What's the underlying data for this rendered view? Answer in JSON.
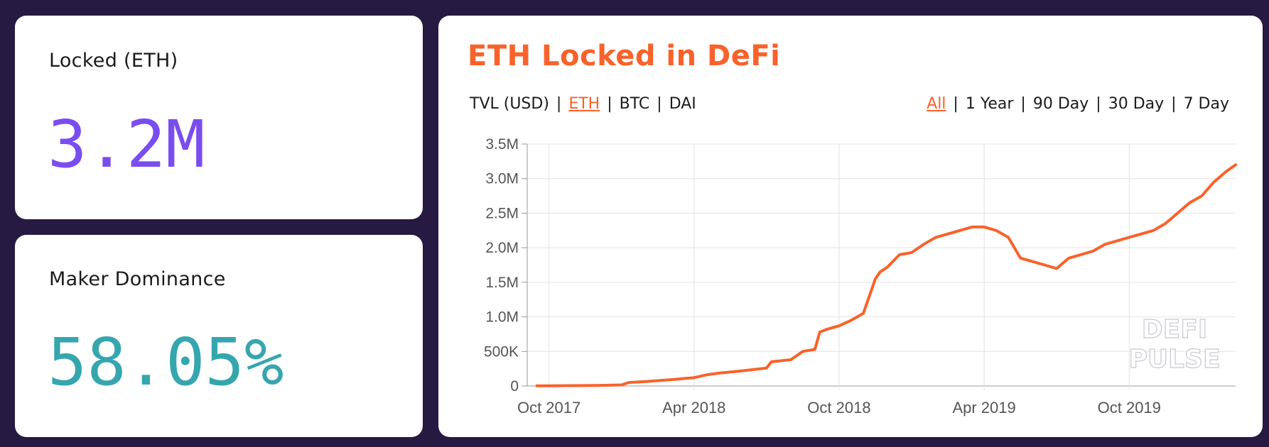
{
  "colors": {
    "background": "#261a42",
    "card": "#ffffff",
    "accent_orange": "#f9622b",
    "purple": "#7a4df0",
    "teal": "#36a6ae",
    "grid": "#e2e2e2"
  },
  "stats": [
    {
      "label": "Locked (ETH)",
      "value": "3.2M"
    },
    {
      "label": "Maker Dominance",
      "value": "58.05%"
    }
  ],
  "chart": {
    "title": "ETH Locked in DeFi",
    "metric_options": [
      {
        "label": "TVL (USD)",
        "active": false
      },
      {
        "label": "ETH",
        "active": true
      },
      {
        "label": "BTC",
        "active": false
      },
      {
        "label": "DAI",
        "active": false
      }
    ],
    "range_options": [
      {
        "label": "All",
        "active": true
      },
      {
        "label": "1 Year",
        "active": false
      },
      {
        "label": "90 Day",
        "active": false
      },
      {
        "label": "30 Day",
        "active": false
      },
      {
        "label": "7 Day",
        "active": false
      }
    ],
    "watermark": [
      "DEFI",
      "PULSE"
    ]
  },
  "chart_data": {
    "type": "line",
    "title": "ETH Locked in DeFi",
    "xlabel": "",
    "ylabel": "",
    "x_unit": "months since Oct 2017",
    "xlim": [
      -0.9,
      28.4
    ],
    "ylim": [
      0,
      3500000
    ],
    "grid": true,
    "y_ticks": [
      {
        "value": 0,
        "label": "0"
      },
      {
        "value": 500000,
        "label": "500K"
      },
      {
        "value": 1000000,
        "label": "1.0M"
      },
      {
        "value": 1500000,
        "label": "1.5M"
      },
      {
        "value": 2000000,
        "label": "2.0M"
      },
      {
        "value": 2500000,
        "label": "2.5M"
      },
      {
        "value": 3000000,
        "label": "3.0M"
      },
      {
        "value": 3500000,
        "label": "3.5M"
      }
    ],
    "x_ticks": [
      {
        "value": 0,
        "label": "Oct 2017"
      },
      {
        "value": 6,
        "label": "Apr 2018"
      },
      {
        "value": 12,
        "label": "Oct 2018"
      },
      {
        "value": 18,
        "label": "Apr 2019"
      },
      {
        "value": 24,
        "label": "Oct 2019"
      }
    ],
    "series": [
      {
        "name": "ETH Locked",
        "color": "#f9622b",
        "x": [
          -0.5,
          0,
          1,
          2,
          3,
          3.3,
          4,
          5,
          6,
          6.5,
          7,
          8,
          9,
          9.2,
          10,
          10.5,
          11,
          11.2,
          11.5,
          12,
          12.5,
          13,
          13.5,
          13.7,
          14,
          14.5,
          15,
          15.5,
          16,
          16.5,
          17,
          17.5,
          18,
          18.5,
          19,
          19.5,
          20,
          20.5,
          21,
          21.5,
          22,
          22.5,
          23,
          23.5,
          24,
          24.5,
          25,
          25.5,
          26,
          26.5,
          27,
          27.5,
          28,
          28.4
        ],
        "y": [
          2000,
          3000,
          5000,
          8000,
          15000,
          50000,
          65000,
          90000,
          120000,
          160000,
          185000,
          220000,
          260000,
          350000,
          380000,
          500000,
          530000,
          780000,
          820000,
          870000,
          950000,
          1050000,
          1550000,
          1650000,
          1720000,
          1900000,
          1930000,
          2050000,
          2150000,
          2200000,
          2250000,
          2300000,
          2300000,
          2250000,
          2150000,
          1850000,
          1800000,
          1750000,
          1700000,
          1850000,
          1900000,
          1950000,
          2050000,
          2100000,
          2150000,
          2200000,
          2250000,
          2350000,
          2500000,
          2650000,
          2750000,
          2950000,
          3100000,
          3200000
        ]
      }
    ]
  }
}
